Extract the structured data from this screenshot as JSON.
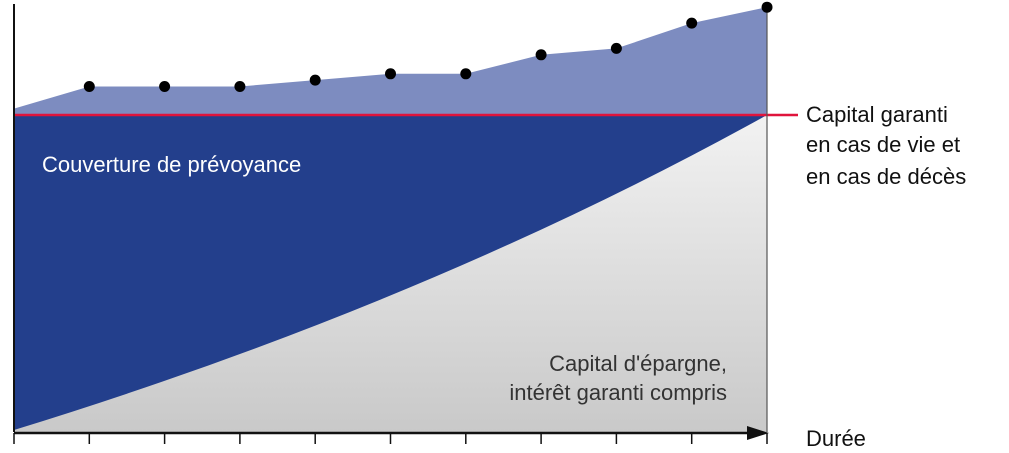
{
  "colors": {
    "savings_fill_top": "#f2f2f2",
    "savings_fill_bottom": "#c9c9c9",
    "coverage_fill": "#233f8c",
    "surplus_fill": "#7d8cc0",
    "guaranteed_line": "#e0143c",
    "axis": "#111111",
    "dots": "#000000"
  },
  "labels": {
    "coverage": "Couverture de prévoyance",
    "savings_line1": "Capital d'épargne,",
    "savings_line2": "intérêt garanti compris",
    "guaranteed_line1": "Capital garanti",
    "guaranteed_line2": "en cas de vie et",
    "guaranteed_line3": "en cas de décès",
    "x_axis": "Durée"
  },
  "chart_data": {
    "type": "area",
    "x_ticks": 10,
    "guaranteed_capital_level": 1.0,
    "bonus_level_points": [
      1.09,
      1.09,
      1.09,
      1.11,
      1.13,
      1.13,
      1.19,
      1.21,
      1.29,
      1.34
    ]
  }
}
